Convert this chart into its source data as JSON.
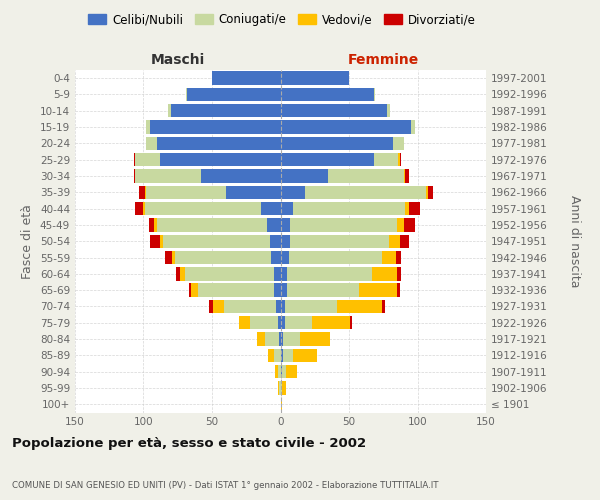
{
  "age_groups": [
    "100+",
    "95-99",
    "90-94",
    "85-89",
    "80-84",
    "75-79",
    "70-74",
    "65-69",
    "60-64",
    "55-59",
    "50-54",
    "45-49",
    "40-44",
    "35-39",
    "30-34",
    "25-29",
    "20-24",
    "15-19",
    "10-14",
    "5-9",
    "0-4"
  ],
  "birth_years": [
    "≤ 1901",
    "1902-1906",
    "1907-1911",
    "1912-1916",
    "1917-1921",
    "1922-1926",
    "1927-1931",
    "1932-1936",
    "1937-1941",
    "1942-1946",
    "1947-1951",
    "1952-1956",
    "1957-1961",
    "1962-1966",
    "1967-1971",
    "1972-1976",
    "1977-1981",
    "1982-1986",
    "1987-1991",
    "1992-1996",
    "1997-2001"
  ],
  "male_celibe": [
    0,
    0,
    0,
    0,
    1,
    2,
    3,
    5,
    5,
    7,
    8,
    10,
    14,
    40,
    58,
    88,
    90,
    95,
    80,
    68,
    50
  ],
  "male_coniugato": [
    0,
    1,
    2,
    5,
    10,
    20,
    38,
    55,
    65,
    70,
    78,
    80,
    85,
    58,
    48,
    18,
    8,
    3,
    2,
    1,
    0
  ],
  "male_vedovo": [
    0,
    1,
    2,
    4,
    6,
    8,
    8,
    5,
    3,
    2,
    2,
    2,
    1,
    1,
    0,
    0,
    0,
    0,
    0,
    0,
    0
  ],
  "male_divorziato": [
    0,
    0,
    0,
    0,
    0,
    0,
    3,
    2,
    3,
    5,
    7,
    4,
    6,
    4,
    1,
    1,
    0,
    0,
    0,
    0,
    0
  ],
  "female_nubile": [
    0,
    0,
    1,
    2,
    2,
    3,
    3,
    5,
    5,
    6,
    7,
    7,
    9,
    18,
    35,
    68,
    82,
    95,
    78,
    68,
    50
  ],
  "female_coniugata": [
    0,
    1,
    3,
    7,
    12,
    20,
    38,
    52,
    62,
    68,
    72,
    78,
    82,
    88,
    55,
    18,
    8,
    3,
    2,
    1,
    0
  ],
  "female_vedova": [
    1,
    3,
    8,
    18,
    22,
    28,
    33,
    28,
    18,
    10,
    8,
    5,
    3,
    2,
    1,
    1,
    0,
    0,
    0,
    0,
    0
  ],
  "female_divorziata": [
    0,
    0,
    0,
    0,
    0,
    1,
    2,
    2,
    3,
    4,
    7,
    8,
    8,
    3,
    3,
    1,
    0,
    0,
    0,
    0,
    0
  ],
  "colors": {
    "celibe": "#4472C4",
    "coniugato": "#C8D9A0",
    "vedovo": "#FFC000",
    "divorziato": "#CC0000"
  },
  "xlim": 150,
  "title": "Popolazione per età, sesso e stato civile - 2002",
  "subtitle": "COMUNE DI SAN GENESIO ED UNITI (PV) - Dati ISTAT 1° gennaio 2002 - Elaborazione TUTTITALIA.IT",
  "ylabel_left": "Fasce di età",
  "ylabel_right": "Anni di nascita",
  "xlabel_left": "Maschi",
  "xlabel_right": "Femmine",
  "legend_labels": [
    "Celibi/Nubili",
    "Coniugati/e",
    "Vedovi/e",
    "Divorziati/e"
  ],
  "bg_color": "#f0f0e8",
  "plot_bg_color": "#ffffff",
  "maschi_color": "#333333",
  "femmine_color": "#CC2200"
}
